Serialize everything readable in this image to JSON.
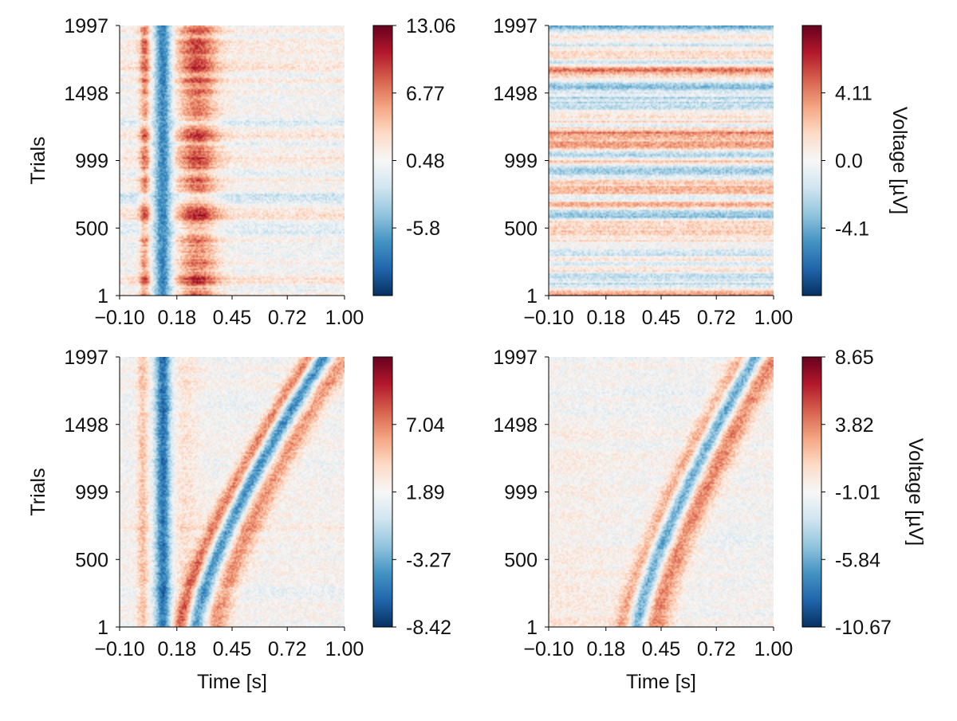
{
  "chart_data": [
    {
      "type": "heatmap",
      "panel": "top-left",
      "pattern": "erp",
      "xlabel": "",
      "ylabel": "Trials",
      "colorbar_label": "",
      "xlim": [
        -0.1,
        1.0
      ],
      "ylim": [
        1,
        1997
      ],
      "x_ticks": [
        -0.1,
        0.18,
        0.45,
        0.72,
        1.0
      ],
      "x_tick_labels": [
        "−0.10",
        "0.18",
        "0.45",
        "0.72",
        "1.00"
      ],
      "y_ticks": [
        1,
        500,
        999,
        1498,
        1997
      ],
      "y_tick_labels": [
        "1",
        "500",
        "999",
        "1498",
        "1997"
      ],
      "colorbar_ticks": [
        13.06,
        6.77,
        0.48,
        -5.8
      ],
      "colorbar_tick_labels": [
        "13.06",
        "6.77",
        "0.48",
        "-5.8"
      ],
      "colorbar_range": [
        -12.1,
        13.06
      ],
      "colormap": "RdBu (reversed)"
    },
    {
      "type": "heatmap",
      "panel": "top-right",
      "pattern": "noise",
      "xlabel": "",
      "ylabel": "",
      "colorbar_label": "Voltage [µV]",
      "xlim": [
        -0.1,
        1.0
      ],
      "ylim": [
        1,
        1997
      ],
      "x_ticks": [
        -0.1,
        0.18,
        0.45,
        0.72,
        1.0
      ],
      "x_tick_labels": [
        "−0.10",
        "0.18",
        "0.45",
        "0.72",
        "1.00"
      ],
      "y_ticks": [
        1,
        500,
        999,
        1498,
        1997
      ],
      "y_tick_labels": [
        "1",
        "500",
        "999",
        "1498",
        "1997"
      ],
      "colorbar_ticks": [
        4.11,
        0.0,
        -4.1
      ],
      "colorbar_tick_labels": [
        "4.11",
        "0.0",
        "-4.1"
      ],
      "colorbar_range": [
        -8.2,
        8.2
      ],
      "colormap": "RdBu (reversed)"
    },
    {
      "type": "heatmap",
      "panel": "bottom-left",
      "pattern": "stim-response",
      "xlabel": "Time [s]",
      "ylabel": "Trials",
      "colorbar_label": "",
      "xlim": [
        -0.1,
        1.0
      ],
      "ylim": [
        1,
        1997
      ],
      "x_ticks": [
        -0.1,
        0.18,
        0.45,
        0.72,
        1.0
      ],
      "x_tick_labels": [
        "−0.10",
        "0.18",
        "0.45",
        "0.72",
        "1.00"
      ],
      "y_ticks": [
        1,
        500,
        999,
        1498,
        1997
      ],
      "y_tick_labels": [
        "1",
        "500",
        "999",
        "1498",
        "1997"
      ],
      "colorbar_ticks": [
        7.04,
        1.89,
        -3.27,
        -8.42
      ],
      "colorbar_tick_labels": [
        "7.04",
        "1.89",
        "-3.27",
        "-8.42"
      ],
      "colorbar_range": [
        -8.42,
        12.2
      ],
      "colormap": "RdBu (reversed)"
    },
    {
      "type": "heatmap",
      "panel": "bottom-right",
      "pattern": "response",
      "xlabel": "Time [s]",
      "ylabel": "",
      "colorbar_label": "Voltage [µV]",
      "xlim": [
        -0.1,
        1.0
      ],
      "ylim": [
        1,
        1997
      ],
      "x_ticks": [
        -0.1,
        0.18,
        0.45,
        0.72,
        1.0
      ],
      "x_tick_labels": [
        "−0.10",
        "0.18",
        "0.45",
        "0.72",
        "1.00"
      ],
      "y_ticks": [
        1,
        500,
        999,
        1498,
        1997
      ],
      "y_tick_labels": [
        "1",
        "500",
        "999",
        "1498",
        "1997"
      ],
      "colorbar_ticks": [
        8.65,
        3.82,
        -1.01,
        -5.84,
        -10.67
      ],
      "colorbar_tick_labels": [
        "8.65",
        "3.82",
        "-1.01",
        "-5.84",
        "-10.67"
      ],
      "colorbar_range": [
        -10.67,
        8.65
      ],
      "colormap": "RdBu (reversed)"
    }
  ]
}
